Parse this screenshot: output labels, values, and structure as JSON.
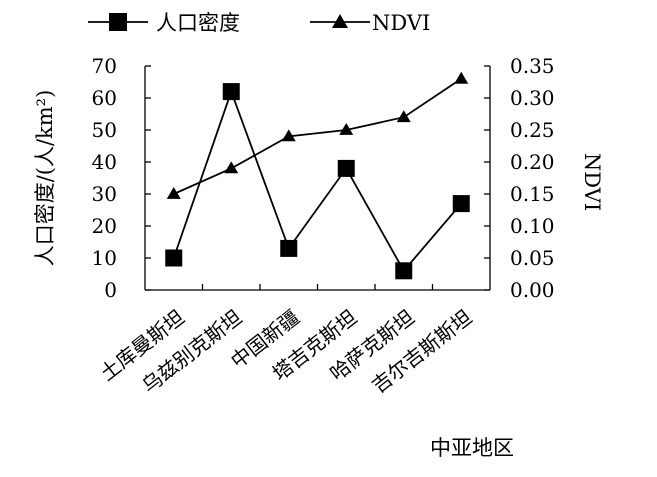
{
  "chart_data": {
    "type": "line",
    "categories": [
      "土库曼斯坦",
      "乌兹别克斯坦",
      "中国新疆",
      "塔吉克斯坦",
      "哈萨克斯坦",
      "吉尔吉斯斯坦"
    ],
    "series": [
      {
        "name": "人口密度",
        "axis": "left",
        "marker": "square",
        "values": [
          10,
          62,
          13,
          38,
          6,
          27
        ]
      },
      {
        "name": "NDVI",
        "axis": "right",
        "marker": "triangle",
        "values": [
          0.15,
          0.19,
          0.24,
          0.25,
          0.27,
          0.33
        ]
      }
    ],
    "xlabel": "中亚地区",
    "ylabel_left": "人口密度/(人/km²)",
    "ylabel_right": "NDVI",
    "ylim_left": [
      0,
      70
    ],
    "ylim_right": [
      0,
      0.35
    ],
    "yticks_left": [
      "0",
      "10",
      "20",
      "30",
      "40",
      "50",
      "60",
      "70"
    ],
    "yticks_right": [
      "0.00",
      "0.05",
      "0.10",
      "0.15",
      "0.20",
      "0.25",
      "0.30",
      "0.35"
    ],
    "grid": false,
    "legend_position": "top",
    "colors": {
      "line": "#000000",
      "marker": "#000000"
    }
  }
}
